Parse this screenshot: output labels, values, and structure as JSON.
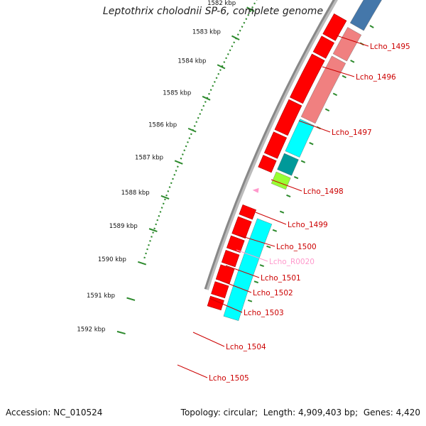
{
  "title": "Leptothrix cholodnii SP-6, complete genome",
  "footer": {
    "accession_label": "Accession:",
    "accession": "NC_010524",
    "topology_label": "Topology:",
    "topology": "circular",
    "length_label": "Length:",
    "length": "4,909,403 bp",
    "genes_label": "Genes:",
    "genes": "4,420"
  },
  "colors": {
    "forward_gene": "#ff0000",
    "reverse_gene": "#00ffff",
    "label_gene": "#cc0000",
    "rna_label": "#ff99cc",
    "tick": "#2d8a2d",
    "backbone": "#888888",
    "pseudo_forward": "#f08080",
    "blue_gene": "#4477aa",
    "teal_gene": "#009999",
    "green_gene": "#99ff33"
  },
  "ruler": [
    {
      "label": "1582 kbp"
    },
    {
      "label": "1583 kbp"
    },
    {
      "label": "1584 kbp"
    },
    {
      "label": "1585 kbp"
    },
    {
      "label": "1586 kbp"
    },
    {
      "label": "1587 kbp"
    },
    {
      "label": "1588 kbp"
    },
    {
      "label": "1589 kbp"
    },
    {
      "label": "1590 kbp"
    },
    {
      "label": "1591 kbp"
    },
    {
      "label": "1592 kbp"
    }
  ],
  "gene_labels": [
    {
      "name": "Lcho_1495",
      "type": "gene"
    },
    {
      "name": "Lcho_1496",
      "type": "gene"
    },
    {
      "name": "Lcho_1497",
      "type": "gene"
    },
    {
      "name": "Lcho_1498",
      "type": "gene"
    },
    {
      "name": "Lcho_1499",
      "type": "gene"
    },
    {
      "name": "Lcho_1500",
      "type": "gene"
    },
    {
      "name": "Lcho_R0020",
      "type": "rna"
    },
    {
      "name": "Lcho_1501",
      "type": "gene"
    },
    {
      "name": "Lcho_1502",
      "type": "gene"
    },
    {
      "name": "Lcho_1503",
      "type": "gene"
    },
    {
      "name": "Lcho_1504",
      "type": "gene"
    },
    {
      "name": "Lcho_1505",
      "type": "gene"
    }
  ]
}
